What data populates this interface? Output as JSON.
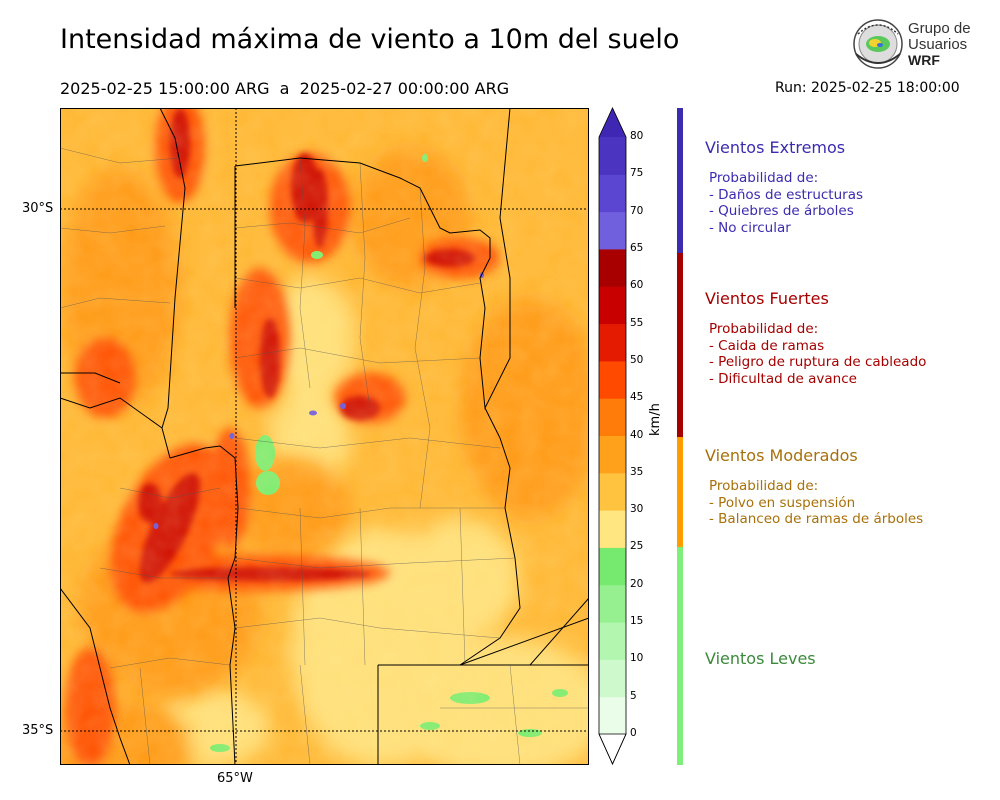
{
  "header": {
    "title": "Intensidad máxima de viento a 10m del suelo",
    "period_start": "2025-02-25 15:00:00 ARG",
    "period_sep": "a",
    "period_end": "2025-02-27 00:00:00 ARG",
    "run": "Run: 2025-02-25 18:00:00"
  },
  "logo": {
    "line1": "Grupo de",
    "line2": "Usuarios",
    "line3": "WRF"
  },
  "map": {
    "lat_labels": [
      "30°S",
      "35°S"
    ],
    "lon_labels": [
      "65°W"
    ]
  },
  "colorbar": {
    "unit": "km/h",
    "levels": [
      "0",
      "5",
      "10",
      "15",
      "20",
      "25",
      "30",
      "35",
      "40",
      "45",
      "50",
      "55",
      "60",
      "65",
      "70",
      "75",
      "80"
    ],
    "colors": [
      "#e9fde9",
      "#cdf9cd",
      "#b3f6b0",
      "#96f08f",
      "#76ea6e",
      "#ffe680",
      "#ffc33f",
      "#ffa11b",
      "#ff7b0a",
      "#ff4a00",
      "#e41b00",
      "#c80000",
      "#a80000",
      "#7060de",
      "#5a46d0",
      "#4a34c0",
      "#3f27b4"
    ],
    "extend_top_color": "#3f27b4",
    "extend_bottom_color": "#ffffff"
  },
  "categories": [
    {
      "name": "Vientos Extremos",
      "color": "#3b2bb0",
      "desc": [
        "Probabilidad de:",
        "- Daños de estructuras",
        "- Quiebres de árboles",
        "- No circular"
      ]
    },
    {
      "name": "Vientos Fuertes",
      "color": "#a50000",
      "desc": [
        "Probabilidad de:",
        "- Caida de ramas",
        "- Peligro de ruptura de cableado",
        "- Dificultad de avance"
      ]
    },
    {
      "name": "Vientos Moderados",
      "color": "#a8700a",
      "desc": [
        "Probabilidad de:",
        "- Polvo en suspensión",
        "- Balanceo de ramas de árboles"
      ]
    },
    {
      "name": "Vientos Leves",
      "color": "#3a8a3a",
      "desc": []
    }
  ],
  "category_bar_colors": {
    "extremos": "#3b2bb0",
    "fuertes": "#a50000",
    "moderados": "#ff9d00",
    "leves": "#7ef07a"
  }
}
